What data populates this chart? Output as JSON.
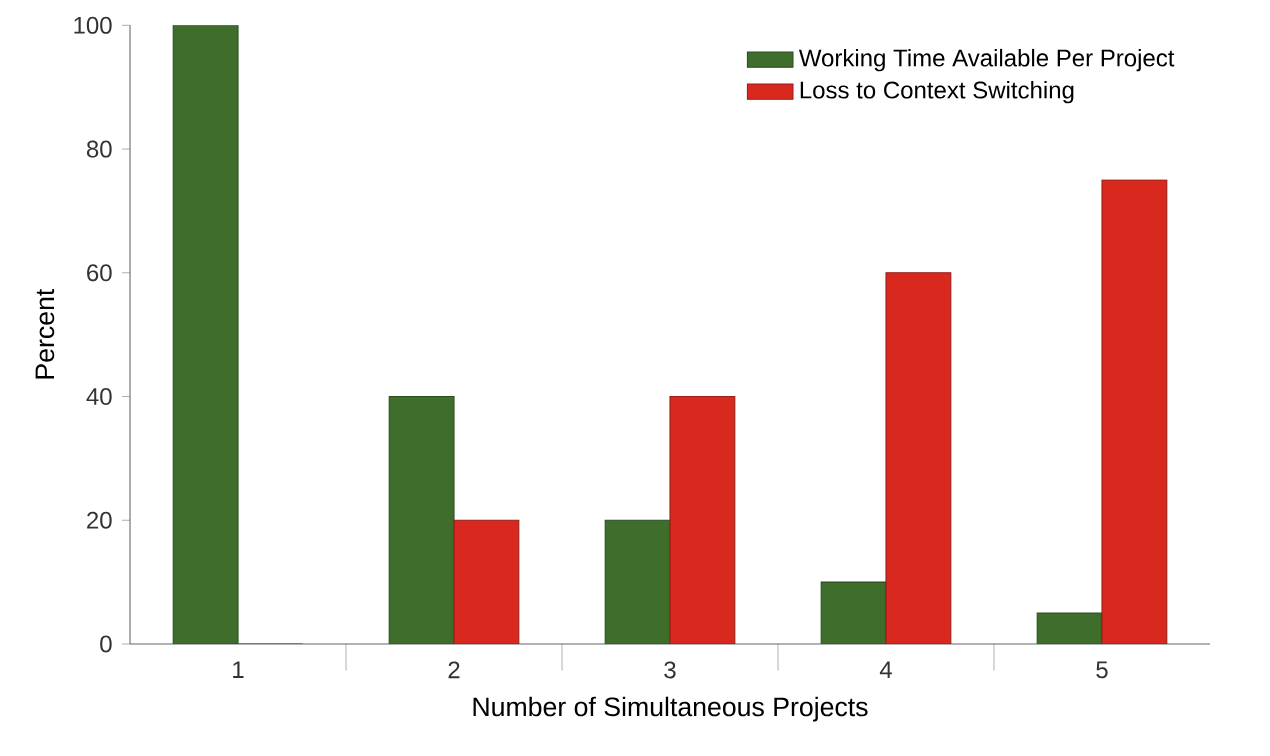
{
  "chart_data": {
    "type": "bar",
    "xlabel": "Number of Simultaneous Projects",
    "ylabel": "Percent",
    "categories": [
      "1",
      "2",
      "3",
      "4",
      "5"
    ],
    "series": [
      {
        "name": "Working Time Available Per Project",
        "color": "#3f6e2c",
        "values": [
          100,
          40,
          20,
          10,
          5
        ]
      },
      {
        "name": "Loss to Context Switching",
        "color": "#d9291f",
        "values": [
          0,
          20,
          40,
          60,
          75
        ]
      }
    ],
    "ylim": [
      0,
      100
    ],
    "yticks": [
      0,
      20,
      40,
      60,
      80,
      100
    ],
    "grid": false,
    "legend": "top right"
  }
}
